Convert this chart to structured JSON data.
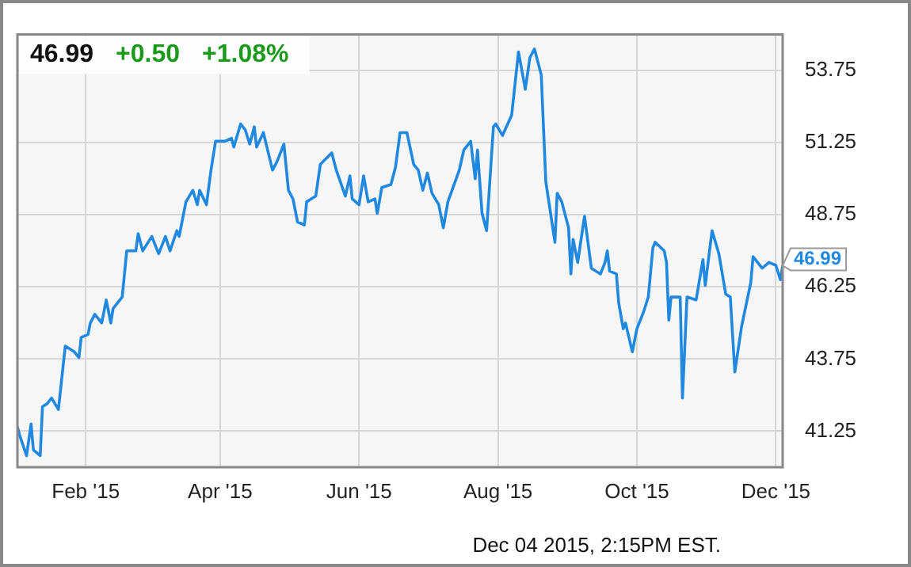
{
  "chart_data": {
    "type": "line",
    "x": [
      "2015-01-02",
      "2015-01-03",
      "2015-01-06",
      "2015-01-08",
      "2015-01-09",
      "2015-01-12",
      "2015-01-13",
      "2015-01-15",
      "2015-01-17",
      "2015-01-20",
      "2015-01-23",
      "2015-01-27",
      "2015-01-29",
      "2015-01-30",
      "2015-02-02",
      "2015-02-03",
      "2015-02-05",
      "2015-02-08",
      "2015-02-10",
      "2015-02-12",
      "2015-02-13",
      "2015-02-17",
      "2015-02-19",
      "2015-02-23",
      "2015-02-24",
      "2015-02-26",
      "2015-03-02",
      "2015-03-05",
      "2015-03-08",
      "2015-03-10",
      "2015-03-13",
      "2015-03-14",
      "2015-03-17",
      "2015-03-20",
      "2015-03-22",
      "2015-03-23",
      "2015-03-26",
      "2015-03-28",
      "2015-03-30",
      "2015-04-03",
      "2015-04-06",
      "2015-04-07",
      "2015-04-10",
      "2015-04-12",
      "2015-04-14",
      "2015-04-16",
      "2015-04-17",
      "2015-04-20",
      "2015-04-24",
      "2015-04-26",
      "2015-04-29",
      "2015-05-01",
      "2015-05-03",
      "2015-05-05",
      "2015-05-08",
      "2015-05-09",
      "2015-05-13",
      "2015-05-15",
      "2015-05-20",
      "2015-05-22",
      "2015-05-26",
      "2015-05-28",
      "2015-05-29",
      "2015-06-01",
      "2015-06-03",
      "2015-06-05",
      "2015-06-08",
      "2015-06-09",
      "2015-06-11",
      "2015-06-15",
      "2015-06-17",
      "2015-06-19",
      "2015-06-22",
      "2015-06-25",
      "2015-06-27",
      "2015-06-29",
      "2015-07-01",
      "2015-07-03",
      "2015-07-06",
      "2015-07-08",
      "2015-07-10",
      "2015-07-15",
      "2015-07-17",
      "2015-07-19",
      "2015-07-20",
      "2015-07-22",
      "2015-07-23",
      "2015-07-25",
      "2015-07-27",
      "2015-07-30",
      "2015-07-31",
      "2015-08-03",
      "2015-08-07",
      "2015-08-10",
      "2015-08-13",
      "2015-08-15",
      "2015-08-17",
      "2015-08-20",
      "2015-08-22",
      "2015-08-26",
      "2015-08-27",
      "2015-08-29",
      "2015-09-01",
      "2015-09-02",
      "2015-09-03",
      "2015-09-05",
      "2015-09-08",
      "2015-09-11",
      "2015-09-15",
      "2015-09-17",
      "2015-09-18",
      "2015-09-19",
      "2015-09-22",
      "2015-09-23",
      "2015-09-25",
      "2015-09-26",
      "2015-09-29",
      "2015-10-01",
      "2015-10-04",
      "2015-10-06",
      "2015-10-08",
      "2015-10-09",
      "2015-10-13",
      "2015-10-14",
      "2015-10-15",
      "2015-10-16",
      "2015-10-20",
      "2015-10-21",
      "2015-10-23",
      "2015-10-27",
      "2015-10-30",
      "2015-10-31",
      "2015-11-03",
      "2015-11-06",
      "2015-11-09",
      "2015-11-11",
      "2015-11-13",
      "2015-11-16",
      "2015-11-20",
      "2015-11-21",
      "2015-11-25",
      "2015-11-28",
      "2015-12-01",
      "2015-12-03",
      "2015-12-04"
    ],
    "series": [
      {
        "color": "#2188e0",
        "values": [
          41.4,
          41.1,
          40.4,
          41.5,
          40.6,
          40.4,
          42.1,
          42.2,
          42.4,
          42.0,
          44.2,
          44.0,
          43.8,
          44.5,
          44.6,
          45.0,
          45.3,
          45.0,
          45.8,
          45.0,
          45.5,
          45.9,
          47.5,
          47.5,
          48.1,
          47.5,
          48.0,
          47.4,
          48.0,
          47.5,
          48.2,
          48.0,
          49.2,
          49.6,
          49.1,
          49.6,
          49.1,
          50.3,
          51.3,
          51.3,
          51.4,
          51.1,
          51.9,
          51.7,
          51.2,
          51.8,
          51.1,
          51.6,
          50.3,
          50.6,
          51.2,
          49.6,
          49.3,
          48.5,
          48.4,
          49.2,
          49.4,
          50.5,
          50.9,
          50.3,
          49.4,
          50.1,
          49.3,
          49.1,
          50.1,
          49.2,
          49.3,
          48.8,
          49.7,
          49.8,
          50.4,
          51.6,
          51.6,
          50.5,
          50.3,
          49.6,
          50.2,
          49.5,
          49.1,
          48.3,
          49.2,
          50.3,
          51.0,
          51.2,
          51.3,
          50.0,
          51.0,
          48.8,
          48.2,
          51.8,
          51.9,
          51.5,
          52.2,
          54.4,
          53.1,
          54.2,
          54.5,
          53.6,
          49.9,
          47.8,
          49.5,
          49.2,
          48.3,
          46.7,
          47.9,
          47.1,
          48.7,
          46.9,
          46.7,
          47.1,
          47.5,
          46.8,
          46.7,
          45.7,
          44.8,
          45.0,
          44.0,
          44.8,
          45.4,
          45.9,
          47.6,
          47.8,
          47.5,
          47.1,
          45.1,
          45.9,
          45.9,
          42.4,
          45.9,
          45.8,
          47.2,
          46.3,
          48.2,
          47.4,
          46.0,
          45.9,
          43.3,
          44.9,
          46.4,
          47.3,
          46.9,
          47.1,
          47.0,
          46.5,
          46.99
        ]
      }
    ],
    "xlim": [
      "2015-01-02",
      "2015-12-04"
    ],
    "xticks": [
      {
        "value": "2015-02-01",
        "label": "Feb '15"
      },
      {
        "value": "2015-04-01",
        "label": "Apr '15"
      },
      {
        "value": "2015-06-01",
        "label": "Jun '15"
      },
      {
        "value": "2015-08-01",
        "label": "Aug '15"
      },
      {
        "value": "2015-10-01",
        "label": "Oct '15"
      },
      {
        "value": "2015-12-01",
        "label": "Dec '15"
      }
    ],
    "ylim": [
      40,
      55
    ],
    "yticks": [
      41.25,
      43.75,
      46.25,
      48.75,
      51.25,
      53.75
    ],
    "grid": true,
    "annotations": [
      "46.99",
      "+0.50",
      "+1.08%",
      "Dec 04 2015, 2:15PM EST.",
      {
        "text": "46.99",
        "x": "2015-12-04",
        "y": 46.99
      }
    ]
  }
}
